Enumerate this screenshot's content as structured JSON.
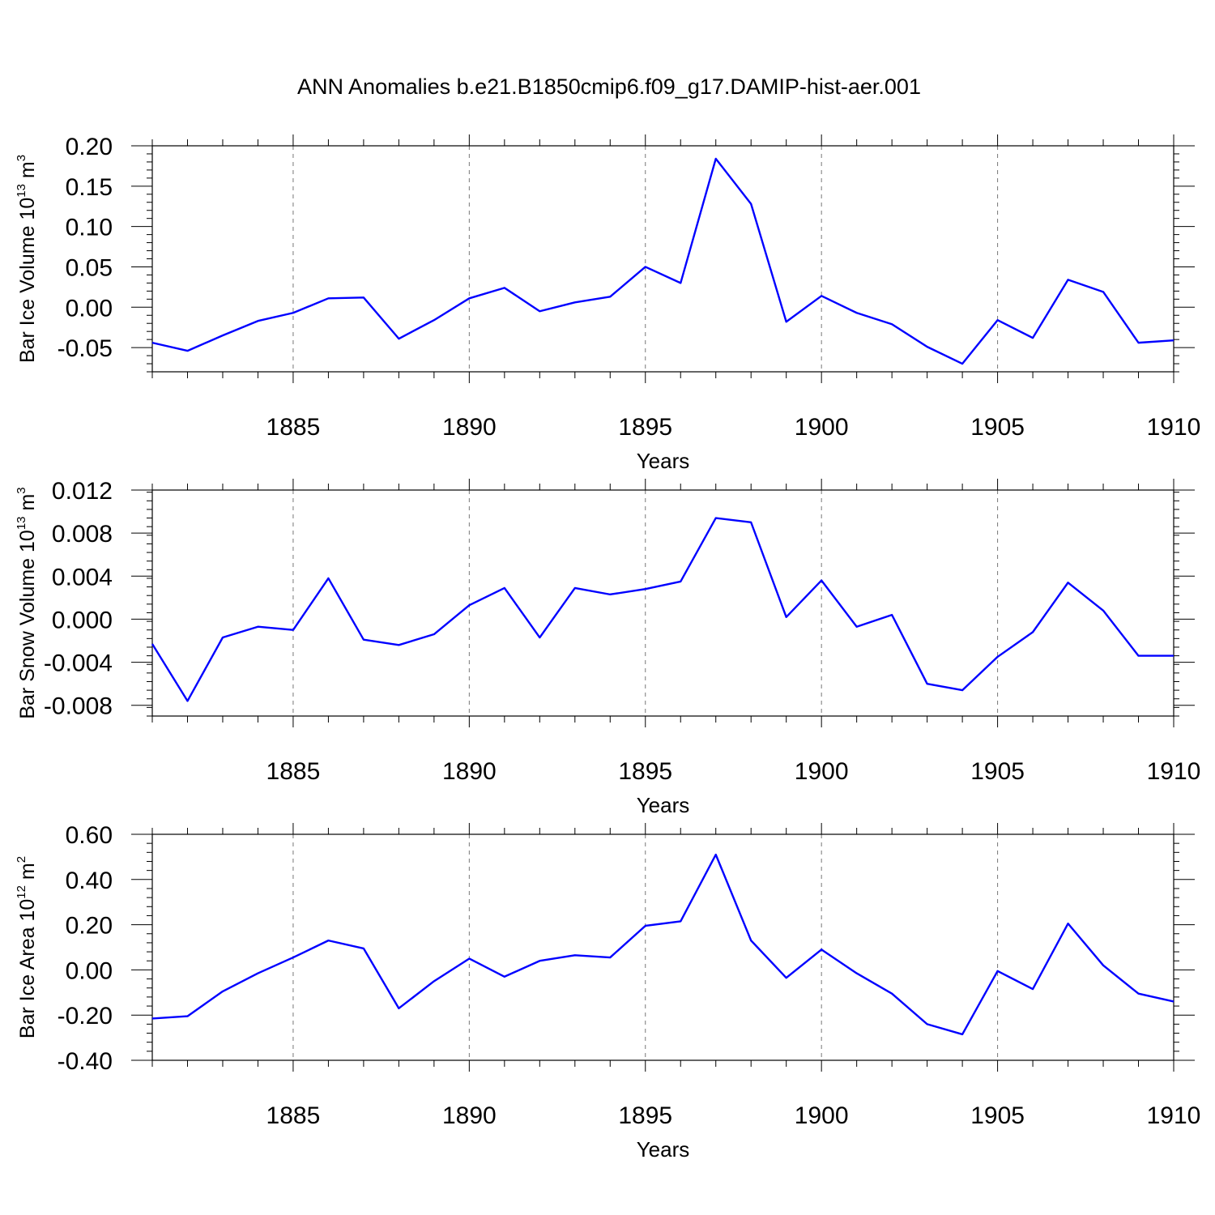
{
  "title": "ANN Anomalies b.e21.B1850cmip6.f09_g17.DAMIP-hist-aer.001",
  "colors": {
    "line": "#0000ff",
    "axis": "#000000",
    "grid": "#777777"
  },
  "chart_data": [
    {
      "type": "line",
      "xlabel": "Years",
      "ylabel": {
        "main": "Bar Ice Volume 10",
        "exp": "13",
        "unit": " m",
        "unit_exp": "3"
      },
      "xlim": [
        1881,
        1910
      ],
      "ylim": [
        -0.08,
        0.2
      ],
      "xticks": [
        1885,
        1890,
        1895,
        1900,
        1905,
        1910
      ],
      "yticks": [
        -0.05,
        0.0,
        0.05,
        0.1,
        0.15,
        0.2
      ],
      "ytick_labels": [
        "-0.05",
        "0.00",
        "0.05",
        "0.10",
        "0.15",
        "0.20"
      ],
      "x": [
        1881,
        1882,
        1883,
        1884,
        1885,
        1886,
        1887,
        1888,
        1889,
        1890,
        1891,
        1892,
        1893,
        1894,
        1895,
        1896,
        1897,
        1898,
        1899,
        1900,
        1901,
        1902,
        1903,
        1904,
        1905,
        1906,
        1907,
        1908,
        1909,
        1910
      ],
      "series": [
        {
          "values": [
            -0.044,
            -0.054,
            -0.035,
            -0.017,
            -0.007,
            0.011,
            0.012,
            -0.039,
            -0.016,
            0.011,
            0.024,
            -0.005,
            0.006,
            0.013,
            0.05,
            0.03,
            0.184,
            0.128,
            -0.018,
            0.014,
            -0.007,
            -0.021,
            -0.049,
            -0.07,
            -0.016,
            -0.038,
            0.034,
            0.019,
            -0.044,
            -0.041
          ]
        }
      ],
      "grid_x": true
    },
    {
      "type": "line",
      "xlabel": "Years",
      "ylabel": {
        "main": "Bar Snow Volume 10",
        "exp": "13",
        "unit": " m",
        "unit_exp": "3"
      },
      "xlim": [
        1881,
        1910
      ],
      "ylim": [
        -0.009,
        0.012
      ],
      "xticks": [
        1885,
        1890,
        1895,
        1900,
        1905,
        1910
      ],
      "yticks": [
        -0.008,
        -0.004,
        0.0,
        0.004,
        0.008,
        0.012
      ],
      "ytick_labels": [
        "-0.008",
        "-0.004",
        "0.000",
        "0.004",
        "0.008",
        "0.012"
      ],
      "x": [
        1881,
        1882,
        1883,
        1884,
        1885,
        1886,
        1887,
        1888,
        1889,
        1890,
        1891,
        1892,
        1893,
        1894,
        1895,
        1896,
        1897,
        1898,
        1899,
        1900,
        1901,
        1902,
        1903,
        1904,
        1905,
        1906,
        1907,
        1908,
        1909,
        1910
      ],
      "series": [
        {
          "values": [
            -0.0023,
            -0.0076,
            -0.0017,
            -0.0007,
            -0.001,
            0.0038,
            -0.0019,
            -0.0024,
            -0.0014,
            0.0013,
            0.0029,
            -0.0017,
            0.0029,
            0.0023,
            0.0028,
            0.0035,
            0.0094,
            0.009,
            0.0002,
            0.0036,
            -0.0007,
            0.0004,
            -0.006,
            -0.0066,
            -0.0035,
            -0.0012,
            0.0034,
            0.0008,
            -0.0034,
            -0.0034
          ]
        }
      ],
      "grid_x": true
    },
    {
      "type": "line",
      "xlabel": "Years",
      "ylabel": {
        "main": "Bar Ice Area 10",
        "exp": "12",
        "unit": " m",
        "unit_exp": "2"
      },
      "xlim": [
        1881,
        1910
      ],
      "ylim": [
        -0.4,
        0.6
      ],
      "xticks": [
        1885,
        1890,
        1895,
        1900,
        1905,
        1910
      ],
      "yticks": [
        -0.4,
        -0.2,
        0.0,
        0.2,
        0.4,
        0.6
      ],
      "ytick_labels": [
        "-0.40",
        "-0.20",
        "0.00",
        "0.20",
        "0.40",
        "0.60"
      ],
      "x": [
        1881,
        1882,
        1883,
        1884,
        1885,
        1886,
        1887,
        1888,
        1889,
        1890,
        1891,
        1892,
        1893,
        1894,
        1895,
        1896,
        1897,
        1898,
        1899,
        1900,
        1901,
        1902,
        1903,
        1904,
        1905,
        1906,
        1907,
        1908,
        1909,
        1910
      ],
      "series": [
        {
          "values": [
            -0.215,
            -0.205,
            -0.095,
            -0.015,
            0.055,
            0.13,
            0.095,
            -0.17,
            -0.05,
            0.05,
            -0.03,
            0.04,
            0.065,
            0.055,
            0.195,
            0.215,
            0.51,
            0.13,
            -0.035,
            0.09,
            -0.015,
            -0.105,
            -0.24,
            -0.285,
            -0.005,
            -0.085,
            0.205,
            0.02,
            -0.105,
            -0.14
          ]
        }
      ],
      "grid_x": true
    }
  ]
}
